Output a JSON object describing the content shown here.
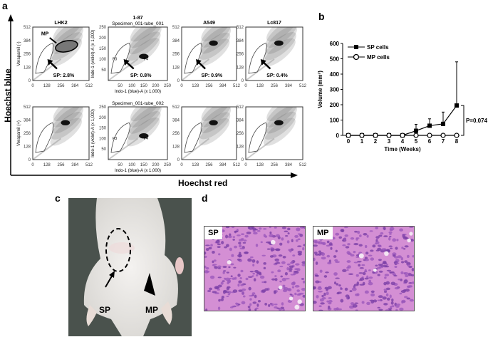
{
  "panels": {
    "a": "a",
    "b": "b",
    "c": "c",
    "d": "d"
  },
  "panel_a": {
    "y_axis_label": "Hoechst blue",
    "x_axis_label": "Hoechst red",
    "columns": [
      {
        "title": "LHK2",
        "subtitle_top": "",
        "subtitle_bottom": "",
        "ticks": [
          "0",
          "128",
          "256",
          "384",
          "512"
        ],
        "ylabel_top": "Verapamil (-)",
        "ylabel_bottom": "Verapamil (+)",
        "sp": "SP: 2.8%",
        "mp": "MP",
        "xlabel": "",
        "xunit": ""
      },
      {
        "title": "1-87",
        "subtitle_top": "Specimen_001-tube_001",
        "subtitle_bottom": "Specimen_001-tube_002",
        "ticks": [
          "",
          "50",
          "100",
          "150",
          "200",
          "250"
        ],
        "ylabel_top": "Indo-1 (violet)-A   (x 1,000)",
        "ylabel_bottom": "Indo-1 (violet)-A   (x 1,000)",
        "sp": "SP: 0.8%",
        "xlabel": "Indo-1 (blue)-A",
        "xunit": "(x 1,000)",
        "gates_top": [
          "P3",
          "P4"
        ],
        "gates_bottom": [
          "P3",
          "P4"
        ]
      },
      {
        "title": "A549",
        "ticks": [
          "0",
          "128",
          "256",
          "384",
          "512"
        ],
        "sp": "SP: 0.9%"
      },
      {
        "title": "Lc817",
        "ticks": [
          "0",
          "128",
          "256",
          "384",
          "512"
        ],
        "sp": "SP: 0.4%"
      }
    ]
  },
  "chart_data": {
    "type": "line",
    "xlabel": "Time (Weeks)",
    "ylabel": "Volume (mm3)",
    "x": [
      0,
      1,
      2,
      3,
      4,
      5,
      6,
      7,
      8
    ],
    "ylim": [
      0,
      600
    ],
    "yticks": [
      0,
      100,
      200,
      300,
      400,
      500,
      600
    ],
    "series": [
      {
        "name": "SP cells",
        "marker": "filled-square",
        "values": [
          0,
          0,
          0,
          0,
          0,
          30,
          63,
          75,
          195
        ],
        "error_upper": [
          0,
          0,
          0,
          0,
          0,
          72,
          108,
          152,
          480
        ]
      },
      {
        "name": "MP cells",
        "marker": "open-circle",
        "values": [
          0,
          0,
          0,
          0,
          0,
          0,
          0,
          0,
          0
        ]
      }
    ],
    "annotation": "P=0.074",
    "legend": "top-left",
    "grid": false
  },
  "panel_c": {
    "sp_label": "SP",
    "mp_label": "MP"
  },
  "panel_d": {
    "sp_label": "SP",
    "mp_label": "MP",
    "stain_color": "#b56cc0"
  }
}
